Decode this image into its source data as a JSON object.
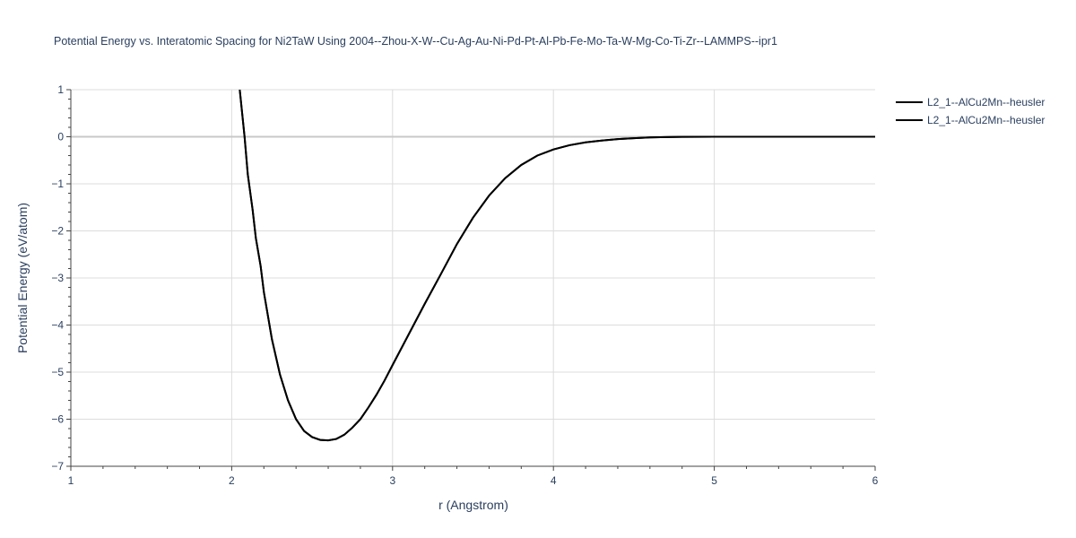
{
  "chart_data": {
    "type": "line",
    "title": "Potential Energy vs. Interatomic Spacing for Ni2TaW Using 2004--Zhou-X-W--Cu-Ag-Au-Ni-Pd-Pt-Al-Pb-Fe-Mo-Ta-W-Mg-Co-Ti-Zr--LAMMPS--ipr1",
    "xlabel": "r (Angstrom)",
    "ylabel": "Potential Energy (eV/atom)",
    "xlim": [
      1,
      6
    ],
    "ylim": [
      -7,
      1
    ],
    "xticks": [
      "1",
      "2",
      "3",
      "4",
      "5",
      "6"
    ],
    "yticks": [
      "1",
      "0",
      "−1",
      "−2",
      "−3",
      "−4",
      "−5",
      "−6",
      "−7"
    ],
    "grid": true,
    "legend_position": "top-right",
    "line_color": "#000000",
    "series": [
      {
        "name": "L2_1--AlCu2Mn--heusler",
        "x": [
          2.05,
          2.08,
          2.1,
          2.13,
          2.15,
          2.18,
          2.2,
          2.25,
          2.3,
          2.35,
          2.4,
          2.45,
          2.5,
          2.55,
          2.6,
          2.65,
          2.7,
          2.75,
          2.8,
          2.85,
          2.9,
          2.95,
          3.0,
          3.1,
          3.2,
          3.3,
          3.4,
          3.5,
          3.6,
          3.7,
          3.8,
          3.9,
          4.0,
          4.1,
          4.2,
          4.3,
          4.4,
          4.5,
          4.6,
          4.7,
          4.8,
          5.0,
          5.5,
          6.0
        ],
        "y": [
          1.0,
          0.0,
          -0.8,
          -1.55,
          -2.15,
          -2.75,
          -3.3,
          -4.3,
          -5.05,
          -5.6,
          -6.0,
          -6.25,
          -6.38,
          -6.44,
          -6.45,
          -6.42,
          -6.33,
          -6.18,
          -6.0,
          -5.75,
          -5.48,
          -5.18,
          -4.85,
          -4.2,
          -3.55,
          -2.92,
          -2.28,
          -1.72,
          -1.25,
          -0.88,
          -0.6,
          -0.4,
          -0.27,
          -0.18,
          -0.12,
          -0.08,
          -0.05,
          -0.03,
          -0.015,
          -0.007,
          -0.003,
          0.0,
          0.0,
          0.0
        ]
      },
      {
        "name": "L2_1--AlCu2Mn--heusler",
        "x": [
          2.05,
          2.08,
          2.1,
          2.13,
          2.15,
          2.18,
          2.2,
          2.25,
          2.3,
          2.35,
          2.4,
          2.45,
          2.5,
          2.55,
          2.6,
          2.65,
          2.7,
          2.75,
          2.8,
          2.85,
          2.9,
          2.95,
          3.0,
          3.1,
          3.2,
          3.3,
          3.4,
          3.5,
          3.6,
          3.7,
          3.8,
          3.9,
          4.0,
          4.1,
          4.2,
          4.3,
          4.4,
          4.5,
          4.6,
          4.7,
          4.8,
          5.0,
          5.5,
          6.0
        ],
        "y": [
          1.0,
          0.0,
          -0.8,
          -1.55,
          -2.15,
          -2.75,
          -3.3,
          -4.3,
          -5.05,
          -5.6,
          -6.0,
          -6.25,
          -6.38,
          -6.44,
          -6.45,
          -6.42,
          -6.33,
          -6.18,
          -6.0,
          -5.75,
          -5.48,
          -5.18,
          -4.85,
          -4.2,
          -3.55,
          -2.92,
          -2.28,
          -1.72,
          -1.25,
          -0.88,
          -0.6,
          -0.4,
          -0.27,
          -0.18,
          -0.12,
          -0.08,
          -0.05,
          -0.03,
          -0.015,
          -0.007,
          -0.003,
          0.0,
          0.0,
          0.0
        ]
      }
    ]
  }
}
